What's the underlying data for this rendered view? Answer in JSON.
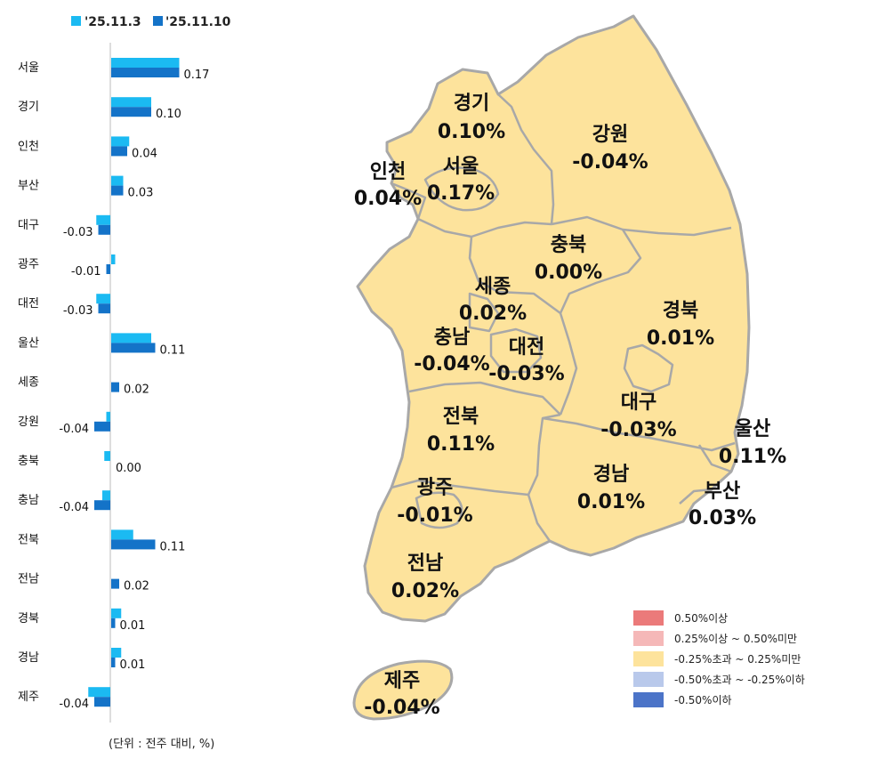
{
  "colors": {
    "series1": "#1bbaf2",
    "series2": "#1473c8",
    "land": "#fde39c",
    "border": "#a8a8a8",
    "legend": [
      "#eb7a7a",
      "#f5b8b8",
      "#fde39c",
      "#b9c9eb",
      "#4c74c8"
    ]
  },
  "top_legend": {
    "s1": "'25.11.3",
    "s2": "'25.11.10"
  },
  "chart_data": {
    "type": "bar",
    "orientation": "horizontal",
    "categories": [
      "서울",
      "경기",
      "인천",
      "부산",
      "대구",
      "광주",
      "대전",
      "울산",
      "세종",
      "강원",
      "충북",
      "충남",
      "전북",
      "전남",
      "경북",
      "경남",
      "제주"
    ],
    "series": [
      {
        "name": "'25.11.3",
        "values": [
          0.17,
          0.1,
          0.045,
          0.03,
          -0.035,
          0.01,
          -0.035,
          0.1,
          0.0,
          -0.01,
          -0.015,
          -0.02,
          0.055,
          0.0,
          0.025,
          0.025,
          -0.055
        ]
      },
      {
        "name": "'25.11.10",
        "values": [
          0.17,
          0.1,
          0.04,
          0.03,
          -0.03,
          -0.01,
          -0.03,
          0.11,
          0.02,
          -0.04,
          0.0,
          -0.04,
          0.11,
          0.02,
          0.01,
          0.01,
          -0.04
        ]
      }
    ],
    "value_labels": [
      "0.17",
      "0.10",
      "0.04",
      "0.03",
      "-0.03",
      "-0.01",
      "-0.03",
      "0.11",
      "0.02",
      "-0.04",
      "0.00",
      "-0.04",
      "0.11",
      "0.02",
      "0.01",
      "0.01",
      "-0.04"
    ],
    "unit_note": "(단위 : 전주 대비, %)"
  },
  "map": {
    "regions": [
      {
        "name": "경기",
        "value": "0.10%"
      },
      {
        "name": "강원",
        "value": "-0.04%"
      },
      {
        "name": "인천",
        "value": "0.04%"
      },
      {
        "name": "서울",
        "value": "0.17%"
      },
      {
        "name": "충북",
        "value": "0.00%"
      },
      {
        "name": "세종",
        "value": "0.02%"
      },
      {
        "name": "경북",
        "value": "0.01%"
      },
      {
        "name": "충남",
        "value": "-0.04%"
      },
      {
        "name": "대전",
        "value": "-0.03%"
      },
      {
        "name": "대구",
        "value": "-0.03%"
      },
      {
        "name": "전북",
        "value": "0.11%"
      },
      {
        "name": "울산",
        "value": "0.11%"
      },
      {
        "name": "광주",
        "value": "-0.01%"
      },
      {
        "name": "경남",
        "value": "0.01%"
      },
      {
        "name": "부산",
        "value": "0.03%"
      },
      {
        "name": "전남",
        "value": "0.02%"
      },
      {
        "name": "제주",
        "value": "-0.04%"
      }
    ]
  },
  "legend": [
    "0.50%이상",
    "0.25%이상 ~ 0.50%미만",
    "-0.25%초과 ~ 0.25%미만",
    "-0.50%초과 ~ -0.25%이하",
    "-0.50%이하"
  ]
}
